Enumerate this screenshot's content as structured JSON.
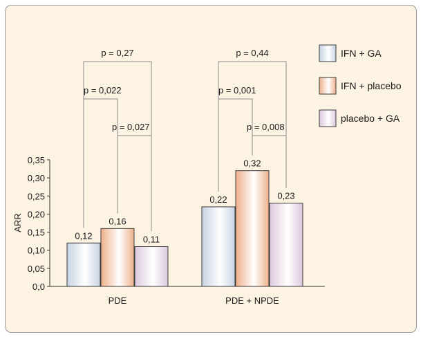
{
  "chart_data": {
    "type": "bar",
    "categories": [
      "PDE",
      "PDE + NPDE"
    ],
    "series": [
      {
        "name": "IFN + GA",
        "values": [
          0.12,
          0.22
        ],
        "labels": [
          "0,12",
          "0,22"
        ],
        "color": "#c7d2e2"
      },
      {
        "name": "IFN + placebo",
        "values": [
          0.16,
          0.32
        ],
        "labels": [
          "0,16",
          "0,32"
        ],
        "color": "#eeb08a"
      },
      {
        "name": "placebo + GA",
        "values": [
          0.11,
          0.23
        ],
        "labels": [
          "0,11",
          "0,23"
        ],
        "color": "#dcc8dc"
      }
    ],
    "ylabel": "ARR",
    "ylim": [
      0,
      0.35
    ],
    "yticks": [
      "0,0",
      "0,05",
      "0,10",
      "0,15",
      "0,20",
      "0,25",
      "0,30",
      "0,35"
    ],
    "legend_position": "top-right",
    "grid": false,
    "annotations": [
      {
        "group": 0,
        "from": 0,
        "to": 2,
        "label": "p = 0,27",
        "level": 3
      },
      {
        "group": 0,
        "from": 0,
        "to": 1,
        "label": "p = 0,022",
        "level": 2
      },
      {
        "group": 0,
        "from": 1,
        "to": 2,
        "label": "p = 0,027",
        "level": 1
      },
      {
        "group": 1,
        "from": 0,
        "to": 2,
        "label": "p = 0,44",
        "level": 3
      },
      {
        "group": 1,
        "from": 0,
        "to": 1,
        "label": "p = 0,001",
        "level": 2
      },
      {
        "group": 1,
        "from": 1,
        "to": 2,
        "label": "p = 0,008",
        "level": 1
      }
    ]
  }
}
